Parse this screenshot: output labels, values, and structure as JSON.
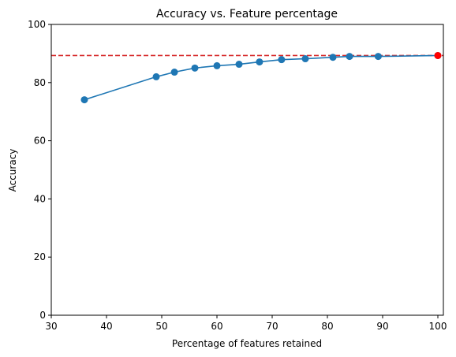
{
  "chart_data": {
    "type": "line",
    "title": "Accuracy vs. Feature percentage",
    "xlabel": "Percentage of features retained",
    "ylabel": "Accuracy",
    "xlim": [
      30,
      101
    ],
    "ylim": [
      0,
      100
    ],
    "xticks": [
      30,
      40,
      50,
      60,
      70,
      80,
      90,
      100
    ],
    "yticks": [
      0,
      20,
      40,
      60,
      80,
      100
    ],
    "grid": false,
    "series": [
      {
        "color": "#1f77b4",
        "marker": "circle",
        "x": [
          36,
          49,
          52.3,
          56,
          60,
          64,
          67.7,
          71.7,
          76,
          81,
          84,
          89.2,
          100
        ],
        "y": [
          74.1,
          82.0,
          83.6,
          85.0,
          85.8,
          86.3,
          87.1,
          87.9,
          88.2,
          88.7,
          89.0,
          89.0,
          89.3
        ]
      }
    ],
    "reference_line": {
      "y": 89.3,
      "color": "#d62728",
      "style": "dashed"
    },
    "highlight_point": {
      "x": 100,
      "y": 89.3,
      "color": "#ff0000"
    }
  }
}
